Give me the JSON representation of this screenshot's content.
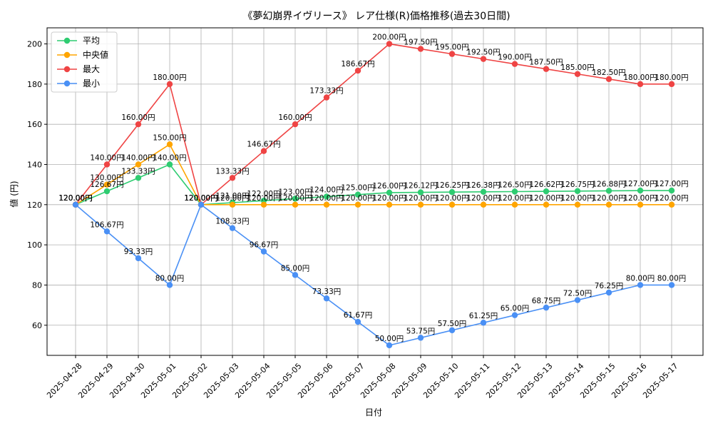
{
  "chart_data": {
    "type": "line",
    "title": "《夢幻崩界イヴリース》 レア仕様(R)価格推移(過去30日間)",
    "xlabel": "日付",
    "ylabel": "値 (円)",
    "ylim": [
      45,
      208
    ],
    "yticks": [
      60,
      80,
      100,
      120,
      140,
      160,
      180,
      200
    ],
    "grid": true,
    "legend_position": "top-left",
    "value_suffix": "円",
    "categories": [
      "2025-04-28",
      "2025-04-29",
      "2025-04-30",
      "2025-05-01",
      "2025-05-02",
      "2025-05-03",
      "2025-05-04",
      "2025-05-05",
      "2025-05-06",
      "2025-05-07",
      "2025-05-08",
      "2025-05-09",
      "2025-05-10",
      "2025-05-11",
      "2025-05-12",
      "2025-05-13",
      "2025-05-14",
      "2025-05-15",
      "2025-05-16",
      "2025-05-17"
    ],
    "series": [
      {
        "name": "平均",
        "color": "#2ecc71",
        "values": [
          120.0,
          126.67,
          133.33,
          140.0,
          120.0,
          121.0,
          122.0,
          123.0,
          124.0,
          125.0,
          126.0,
          126.12,
          126.25,
          126.38,
          126.5,
          126.62,
          126.75,
          126.88,
          127.0,
          127.0
        ]
      },
      {
        "name": "中央値",
        "color": "#ffa500",
        "values": [
          120.0,
          130.0,
          140.0,
          150.0,
          120.0,
          120.0,
          120.0,
          120.0,
          120.0,
          120.0,
          120.0,
          120.0,
          120.0,
          120.0,
          120.0,
          120.0,
          120.0,
          120.0,
          120.0,
          120.0
        ]
      },
      {
        "name": "最大",
        "color": "#ef4444",
        "values": [
          120.0,
          140.0,
          160.0,
          180.0,
          120.0,
          133.33,
          146.67,
          160.0,
          173.33,
          186.67,
          200.0,
          197.5,
          195.0,
          192.5,
          190.0,
          187.5,
          185.0,
          182.5,
          180.0,
          180.0
        ]
      },
      {
        "name": "最小",
        "color": "#4a90f5",
        "values": [
          120.0,
          106.67,
          93.33,
          80.0,
          120.0,
          108.33,
          96.67,
          85.0,
          73.33,
          61.67,
          50.0,
          53.75,
          57.5,
          61.25,
          65.0,
          68.75,
          72.5,
          76.25,
          80.0,
          80.0
        ]
      }
    ]
  }
}
